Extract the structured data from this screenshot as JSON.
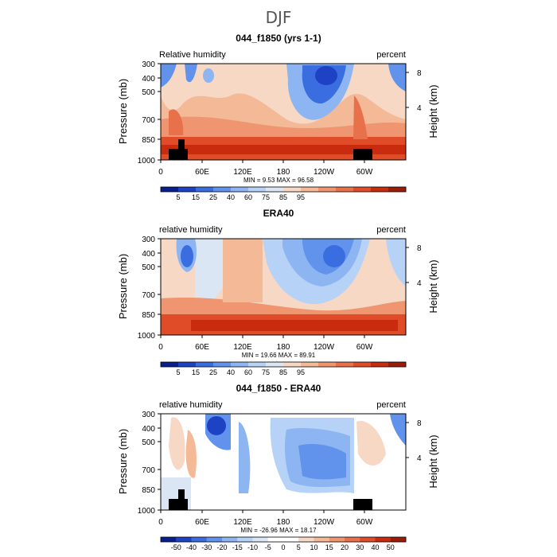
{
  "figure": {
    "title": "DJF"
  },
  "chart_data": [
    {
      "type": "heatmap",
      "title": "044_f1850 (yrs 1-1)",
      "left_label": "Relative humidity",
      "right_label": "percent",
      "ylabel": "Pressure (mb)",
      "ylabel_right": "Height (km)",
      "x_ticks": [
        "0",
        "60E",
        "120E",
        "180",
        "120W",
        "60W"
      ],
      "y_ticks": [
        "300",
        "400",
        "500",
        "700",
        "850",
        "1000"
      ],
      "height_ticks": [
        "8",
        "4"
      ],
      "stats": "MIN =    9.53   MAX =   96.58",
      "colorbar_ticks": [
        "5",
        "15",
        "25",
        "40",
        "60",
        "75",
        "85",
        "95"
      ],
      "colorbar_colors": [
        "#0a1f8f",
        "#1d43c4",
        "#3a6ee0",
        "#6193ec",
        "#8db5f2",
        "#b6d2f6",
        "#dbe6f5",
        "#f6d8c4",
        "#f4b996",
        "#ef9670",
        "#e8714c",
        "#df4c27",
        "#c82b0e",
        "#9a1d06"
      ],
      "ylim": [
        1000,
        300
      ],
      "topography": true
    },
    {
      "type": "heatmap",
      "title": "ERA40",
      "left_label": "relative humidity",
      "right_label": "percent",
      "ylabel": "Pressure (mb)",
      "ylabel_right": "Height (km)",
      "x_ticks": [
        "0",
        "60E",
        "120E",
        "180",
        "120W",
        "60W"
      ],
      "y_ticks": [
        "300",
        "400",
        "500",
        "700",
        "850",
        "1000"
      ],
      "height_ticks": [
        "8",
        "4"
      ],
      "stats": "MIN =   19.66   MAX =   89.91",
      "colorbar_ticks": [
        "5",
        "15",
        "25",
        "40",
        "60",
        "75",
        "85",
        "95"
      ],
      "colorbar_colors": [
        "#0a1f8f",
        "#1d43c4",
        "#3a6ee0",
        "#6193ec",
        "#8db5f2",
        "#b6d2f6",
        "#dbe6f5",
        "#f6d8c4",
        "#f4b996",
        "#ef9670",
        "#e8714c",
        "#df4c27",
        "#c82b0e",
        "#9a1d06"
      ],
      "ylim": [
        1000,
        300
      ],
      "topography": false
    },
    {
      "type": "heatmap",
      "title": "044_f1850 - ERA40",
      "left_label": "relative humidity",
      "right_label": "percent",
      "ylabel": "Pressure (mb)",
      "ylabel_right": "Height (km)",
      "x_ticks": [
        "0",
        "60E",
        "120E",
        "180",
        "120W",
        "60W"
      ],
      "y_ticks": [
        "300",
        "400",
        "500",
        "700",
        "850",
        "1000"
      ],
      "height_ticks": [
        "8",
        "4"
      ],
      "stats": "MIN =  -26.96   MAX =   18.17",
      "colorbar_ticks": [
        "-50",
        "-40",
        "-30",
        "-20",
        "-15",
        "-10",
        "-5",
        "0",
        "5",
        "10",
        "15",
        "20",
        "30",
        "40",
        "50"
      ],
      "colorbar_colors": [
        "#0a1f8f",
        "#1d43c4",
        "#3a6ee0",
        "#6193ec",
        "#8db5f2",
        "#b6d2f6",
        "#dbe6f5",
        "#ffffff",
        "#ffffff",
        "#f6d8c4",
        "#f4b996",
        "#ef9670",
        "#e8714c",
        "#df4c27",
        "#c82b0e",
        "#9a1d06"
      ],
      "ylim": [
        1000,
        300
      ],
      "topography": true
    }
  ]
}
